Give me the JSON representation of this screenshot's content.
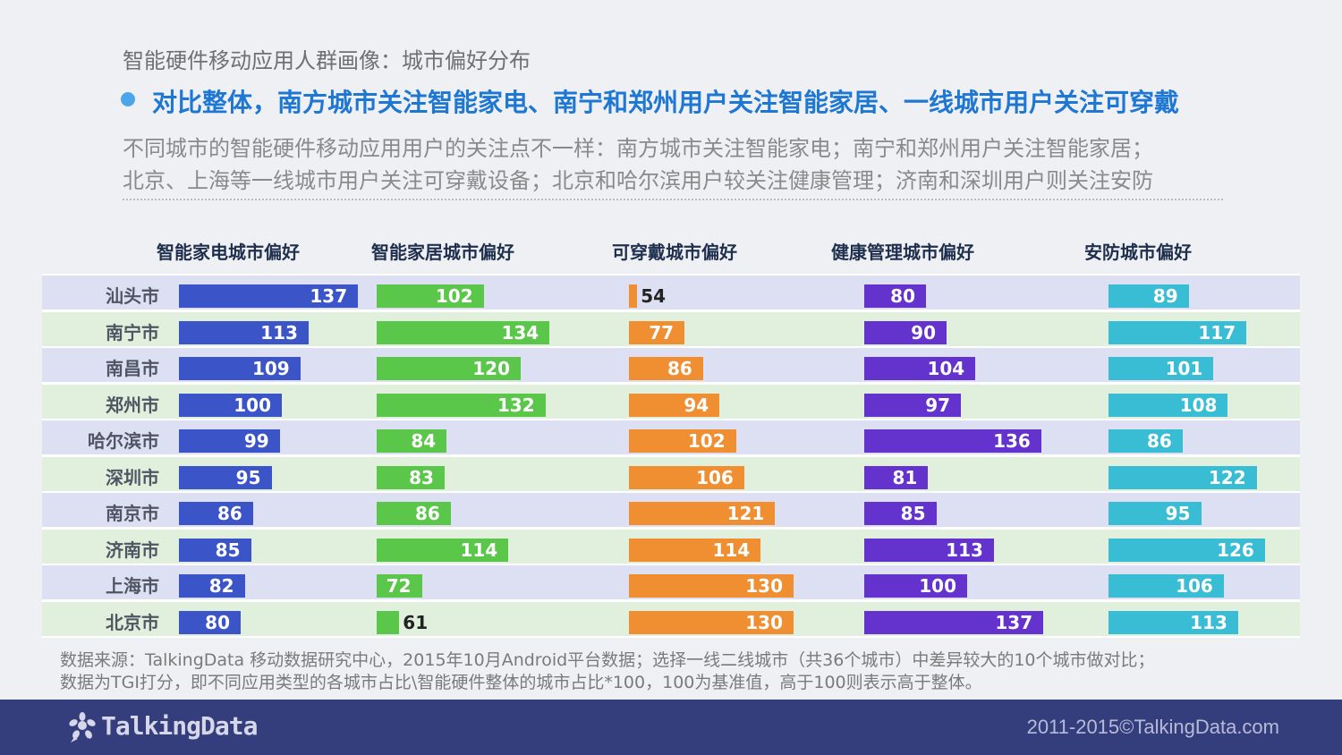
{
  "page": {
    "subtitle": "智能硬件移动应用人群画像：城市偏好分布",
    "headline": "对比整体，南方城市关注智能家电、南宁和郑州用户关注智能家居、一线城市用户关注可穿戴",
    "description": [
      "不同城市的智能硬件移动应用用户的关注点不一样：南方城市关注智能家电；南宁和郑州用户关注智能家居；",
      "北京、上海等一线城市用户关注可穿戴设备；北京和哈尔滨用户较关注健康管理；济南和深圳用户则关注安防"
    ],
    "note": [
      "数据来源：TalkingData 移动数据研究中心，2015年10月Android平台数据；选择一线二线城市（共36个城市）中差异较大的10个城市做对比；",
      "数据为TGI打分，即不同应用类型的各城市占比\\智能硬件整体的城市占比*100，100为基准值，高于100则表示高于整体。"
    ],
    "footer": {
      "logo_text": "TalkingData",
      "copyright": "2011-2015©TalkingData.com"
    }
  },
  "chart_data": {
    "type": "bar",
    "orientation": "horizontal",
    "categories": [
      "汕头市",
      "南宁市",
      "南昌市",
      "郑州市",
      "哈尔滨市",
      "深圳市",
      "南京市",
      "济南市",
      "上海市",
      "北京市"
    ],
    "series": [
      {
        "name": "智能家电城市偏好",
        "color": "#3b55c9",
        "values": [
          137,
          113,
          109,
          100,
          99,
          95,
          86,
          85,
          82,
          80
        ]
      },
      {
        "name": "智能家居城市偏好",
        "color": "#5bc74a",
        "values": [
          102,
          134,
          120,
          132,
          84,
          83,
          86,
          114,
          72,
          61
        ]
      },
      {
        "name": "可穿戴城市偏好",
        "color": "#f08f32",
        "values": [
          54,
          77,
          86,
          94,
          102,
          106,
          121,
          114,
          130,
          130
        ]
      },
      {
        "name": "健康管理城市偏好",
        "color": "#6432cc",
        "values": [
          80,
          90,
          104,
          97,
          136,
          81,
          85,
          113,
          100,
          137
        ]
      },
      {
        "name": "安防城市偏好",
        "color": "#39bdd4",
        "values": [
          89,
          117,
          101,
          108,
          86,
          122,
          95,
          126,
          106,
          113
        ]
      }
    ],
    "baseline": 50,
    "value_type": "TGI"
  }
}
